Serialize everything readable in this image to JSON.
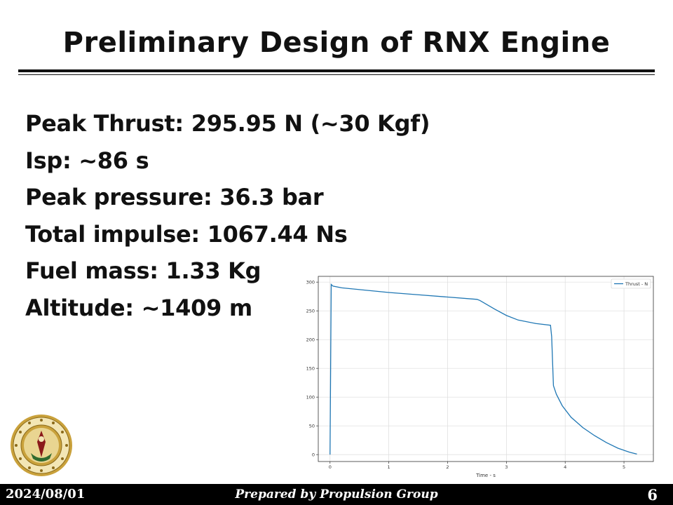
{
  "slide": {
    "title": "Preliminary Design of RNX Engine",
    "bullets": [
      "Peak Thrust: 295.95 N (~30 Kgf)",
      "Isp: ~86 s",
      "Peak pressure: 36.3 bar",
      "Total impulse: 1067.44 Ns",
      "Fuel mass: 1.33 Kg",
      "Altitude: ~1409 m"
    ]
  },
  "footer": {
    "date": "2024/08/01",
    "credit": "Prepared by Propulsion Group",
    "page": "6"
  },
  "colors": {
    "line": "#1f77b4",
    "footer_bg": "#000000",
    "seal_gold": "#c9a13b",
    "seal_red": "#8b1a1a"
  },
  "chart_data": {
    "type": "line",
    "title": "",
    "xlabel": "Time - s",
    "ylabel": "",
    "xlim": [
      -0.2,
      5.5
    ],
    "ylim": [
      -12,
      310
    ],
    "xticks": [
      0,
      1,
      2,
      3,
      4,
      5
    ],
    "yticks": [
      0,
      50,
      100,
      150,
      200,
      250,
      300
    ],
    "grid": true,
    "legend": "top-right",
    "series": [
      {
        "name": "Thrust - N",
        "x": [
          0.0,
          0.02,
          0.05,
          0.2,
          0.5,
          1.0,
          1.5,
          2.0,
          2.5,
          2.55,
          2.8,
          3.0,
          3.2,
          3.5,
          3.75,
          3.77,
          3.8,
          3.85,
          3.95,
          4.1,
          4.3,
          4.5,
          4.7,
          4.9,
          5.1,
          5.22
        ],
        "y": [
          0,
          296,
          293,
          290,
          287,
          282,
          278,
          274,
          270,
          268,
          253,
          242,
          234,
          228,
          225,
          205,
          120,
          105,
          85,
          65,
          47,
          33,
          21,
          11,
          4,
          1
        ]
      }
    ]
  }
}
